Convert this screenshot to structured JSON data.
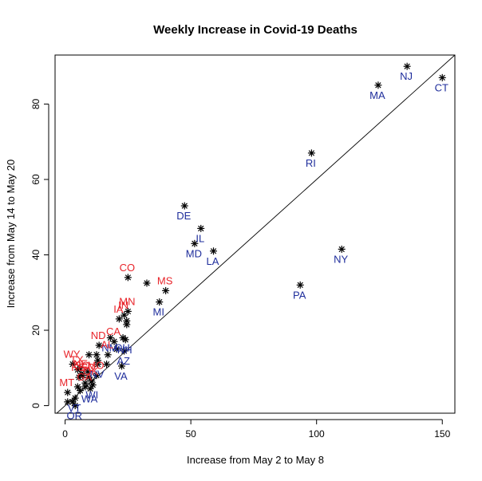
{
  "chart_data": {
    "type": "scatter",
    "title": "Weekly Increase in Covid-19 Deaths",
    "xlabel": "Increase from May 2 to May 8",
    "ylabel": "Increase from May 14 to May 20",
    "xlim": [
      -4,
      155
    ],
    "ylim": [
      -2,
      93
    ],
    "xticks": [
      0,
      50,
      100,
      150
    ],
    "yticks": [
      0,
      20,
      40,
      60,
      80
    ],
    "reference_line": {
      "slope": 0.6,
      "intercept": 0
    },
    "colors": {
      "red_label": "#e8242a",
      "blue_label": "#1f2e9c",
      "point": "#000000"
    },
    "points": [
      {
        "label": "CT",
        "x": 150,
        "y": 87,
        "color": "blue"
      },
      {
        "label": "NJ",
        "x": 136,
        "y": 90,
        "color": "blue"
      },
      {
        "label": "MA",
        "x": 124.5,
        "y": 85,
        "color": "blue"
      },
      {
        "label": "NY",
        "x": 110,
        "y": 41.5,
        "color": "blue"
      },
      {
        "label": "RI",
        "x": 98,
        "y": 67,
        "color": "blue"
      },
      {
        "label": "PA",
        "x": 93.5,
        "y": 32,
        "color": "blue"
      },
      {
        "label": "LA",
        "x": 59,
        "y": 41,
        "color": "blue"
      },
      {
        "label": "IL",
        "x": 54,
        "y": 47,
        "color": "blue"
      },
      {
        "label": "MD",
        "x": 51.5,
        "y": 43,
        "color": "blue"
      },
      {
        "label": "DE",
        "x": 47.5,
        "y": 53,
        "color": "blue"
      },
      {
        "label": "MS",
        "x": 40,
        "y": 30.5,
        "color": "red"
      },
      {
        "label": "MI",
        "x": 37.5,
        "y": 27.5,
        "color": "blue"
      },
      {
        "label": "CO",
        "x": 25,
        "y": 34,
        "color": "red"
      },
      {
        "label": "MN",
        "x": 25,
        "y": 25,
        "color": "red"
      },
      {
        "label": "IA",
        "x": 21.5,
        "y": 23,
        "color": "red"
      },
      {
        "label": "IN",
        "x": 23.5,
        "y": 24,
        "color": "red"
      },
      {
        "label": "NM",
        "x": 18,
        "y": 18,
        "color": "blue"
      },
      {
        "label": "OH",
        "x": 23,
        "y": 18,
        "color": "blue"
      },
      {
        "label": "CA",
        "x": 19.5,
        "y": 17,
        "color": "red"
      },
      {
        "label": "NH",
        "x": 24,
        "y": 17.5,
        "color": "blue"
      },
      {
        "label": "AZ",
        "x": 23.5,
        "y": 14.5,
        "color": "blue"
      },
      {
        "label": "VA",
        "x": 22.5,
        "y": 10.5,
        "color": "blue"
      },
      {
        "label": "ND",
        "x": 13.5,
        "y": 16,
        "color": "red"
      },
      {
        "label": "AL",
        "x": 17,
        "y": 13.5,
        "color": "red"
      },
      {
        "label": "NV",
        "x": 13,
        "y": 11,
        "color": "blue"
      },
      {
        "label": "WY",
        "x": 3,
        "y": 11,
        "color": "red"
      },
      {
        "label": "TX",
        "x": 5,
        "y": 9.5,
        "color": "red"
      },
      {
        "label": "NE",
        "x": 6.5,
        "y": 8.5,
        "color": "red"
      },
      {
        "label": "SC",
        "x": 7,
        "y": 8,
        "color": "red"
      },
      {
        "label": "KS",
        "x": 5.5,
        "y": 7.5,
        "color": "red"
      },
      {
        "label": "SD",
        "x": 9.5,
        "y": 7.5,
        "color": "red"
      },
      {
        "label": "OK",
        "x": 10.5,
        "y": 6.5,
        "color": "red"
      },
      {
        "label": "MO",
        "x": 12.5,
        "y": 8,
        "color": "red"
      },
      {
        "label": "GA",
        "x": 8,
        "y": 5,
        "color": "red"
      },
      {
        "label": "WI",
        "x": 11,
        "y": 5.5,
        "color": "blue"
      },
      {
        "label": "WA",
        "x": 10,
        "y": 4.5,
        "color": "blue"
      },
      {
        "label": "MT",
        "x": 1,
        "y": 3.5,
        "color": "red"
      },
      {
        "label": "VT",
        "x": 4,
        "y": 2,
        "color": "blue"
      },
      {
        "label": "OR",
        "x": 4,
        "y": 0,
        "color": "blue"
      }
    ],
    "extra_points": [
      {
        "x": 32.5,
        "y": 32.5
      },
      {
        "x": 24.5,
        "y": 21.5
      },
      {
        "x": 24.5,
        "y": 22.5
      },
      {
        "x": 20.5,
        "y": 15
      },
      {
        "x": 16.5,
        "y": 11
      },
      {
        "x": 12.5,
        "y": 13.5
      },
      {
        "x": 9.5,
        "y": 13.5
      },
      {
        "x": 13,
        "y": 12
      },
      {
        "x": 6,
        "y": 10
      },
      {
        "x": 8,
        "y": 6
      },
      {
        "x": 6,
        "y": 4
      },
      {
        "x": 3,
        "y": 1
      },
      {
        "x": 1,
        "y": 1
      },
      {
        "x": 5,
        "y": 5
      },
      {
        "x": 9,
        "y": 9
      }
    ]
  }
}
